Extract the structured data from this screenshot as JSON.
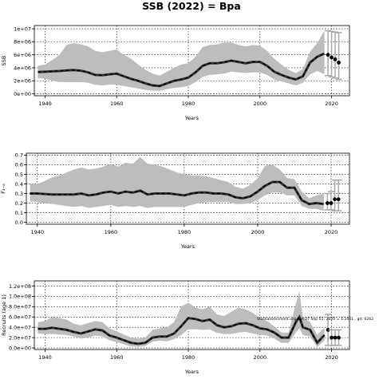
{
  "title": "SSB (2022) = Bpa",
  "chart_data": [
    {
      "type": "line",
      "ylabel": "SSB",
      "xlabel": "Years",
      "xlim": [
        1937,
        2025
      ],
      "ylim": [
        -300000,
        10500000
      ],
      "xticks": [
        1940,
        1960,
        1980,
        2000,
        2020
      ],
      "yticks": [
        {
          "v": 0,
          "label": "0e+00"
        },
        {
          "v": 2000000,
          "label": "2e+06"
        },
        {
          "v": 4000000,
          "label": "4e+06"
        },
        {
          "v": 6000000,
          "label": "6e+06"
        },
        {
          "v": 8000000,
          "label": "8e+06"
        },
        {
          "v": 10000000,
          "label": "1e+07"
        }
      ],
      "grid": true,
      "series": [
        {
          "x": [
            1938,
            1940,
            1942,
            1944,
            1946,
            1948,
            1950,
            1952,
            1954,
            1956,
            1958,
            1960,
            1962,
            1964,
            1966,
            1968,
            1970,
            1972,
            1974,
            1976,
            1978,
            1980,
            1982,
            1984,
            1986,
            1988,
            1990,
            1992,
            1994,
            1996,
            1998,
            2000,
            2002,
            2004,
            2006,
            2008,
            2010,
            2012,
            2014,
            2016,
            2018
          ],
          "y": [
            3350000,
            3400000,
            3450000,
            3500000,
            3600000,
            3650000,
            3550000,
            3300000,
            2900000,
            2850000,
            3000000,
            3100000,
            2700000,
            2300000,
            2000000,
            1600000,
            1300000,
            1200000,
            1600000,
            2000000,
            2200000,
            2500000,
            3300000,
            4300000,
            4700000,
            4700000,
            4850000,
            5100000,
            4900000,
            4700000,
            4900000,
            4900000,
            4300000,
            3400000,
            2900000,
            2500000,
            2200000,
            2700000,
            4800000,
            5700000,
            6200000
          ],
          "upper": [
            4300000,
            4500000,
            5200000,
            6000000,
            7500000,
            7800000,
            7600000,
            7300000,
            6600000,
            6400000,
            6600000,
            6800000,
            6000000,
            5400000,
            4500000,
            3700000,
            3100000,
            2800000,
            3400000,
            4000000,
            4500000,
            4700000,
            5700000,
            7200000,
            7500000,
            7600000,
            7900000,
            7900000,
            7500000,
            7300000,
            7500000,
            7400000,
            6600000,
            5400000,
            4500000,
            3700000,
            3200000,
            3800000,
            6500000,
            7800000,
            9700000
          ],
          "lower": [
            2400000,
            2300000,
            2000000,
            1800000,
            1800000,
            1800000,
            1800000,
            1700000,
            1400000,
            1300000,
            1400000,
            1400000,
            1200000,
            1000000,
            800000,
            600000,
            500000,
            450000,
            700000,
            900000,
            1000000,
            1200000,
            1800000,
            2600000,
            2900000,
            3000000,
            3100000,
            3400000,
            3300000,
            3200000,
            3300000,
            3300000,
            2900000,
            2200000,
            1900000,
            1600000,
            1300000,
            1700000,
            3000000,
            3500000,
            3000000
          ]
        }
      ],
      "recent": {
        "x": [
          2019,
          2020,
          2021,
          2022
        ],
        "y": [
          6000000,
          5600000,
          5300000,
          4800000
        ],
        "lower": [
          2800000,
          2600000,
          2400000,
          2200000
        ],
        "upper": [
          9700000,
          9600000,
          9500000,
          9400000
        ]
      }
    },
    {
      "type": "line",
      "ylabel": "F₄₋₈",
      "xlabel": "Years",
      "xlim": [
        1937,
        2025
      ],
      "ylim": [
        -0.02,
        0.72
      ],
      "xticks": [
        1940,
        1960,
        1980,
        2000,
        2020
      ],
      "yticks": [
        {
          "v": 0,
          "label": "0.0"
        },
        {
          "v": 0.1,
          "label": "0.1"
        },
        {
          "v": 0.2,
          "label": "0.2"
        },
        {
          "v": 0.3,
          "label": "0.3"
        },
        {
          "v": 0.4,
          "label": "0.4"
        },
        {
          "v": 0.5,
          "label": "0.5"
        },
        {
          "v": 0.6,
          "label": "0.6"
        },
        {
          "v": 0.7,
          "label": "0.7"
        }
      ],
      "grid": true,
      "series": [
        {
          "x": [
            1938,
            1940,
            1942,
            1944,
            1946,
            1948,
            1950,
            1952,
            1954,
            1956,
            1958,
            1960,
            1962,
            1964,
            1966,
            1968,
            1970,
            1972,
            1974,
            1976,
            1978,
            1980,
            1982,
            1984,
            1986,
            1988,
            1990,
            1992,
            1994,
            1996,
            1998,
            2000,
            2002,
            2004,
            2006,
            2008,
            2010,
            2012,
            2014,
            2016,
            2018
          ],
          "y": [
            0.3,
            0.3,
            0.295,
            0.29,
            0.29,
            0.29,
            0.29,
            0.3,
            0.28,
            0.29,
            0.31,
            0.32,
            0.3,
            0.32,
            0.31,
            0.33,
            0.29,
            0.3,
            0.3,
            0.3,
            0.29,
            0.28,
            0.3,
            0.31,
            0.31,
            0.3,
            0.3,
            0.29,
            0.26,
            0.25,
            0.27,
            0.32,
            0.38,
            0.42,
            0.42,
            0.36,
            0.36,
            0.23,
            0.19,
            0.2,
            0.19
          ],
          "upper": [
            0.4,
            0.4,
            0.43,
            0.47,
            0.49,
            0.52,
            0.55,
            0.57,
            0.55,
            0.56,
            0.58,
            0.61,
            0.58,
            0.62,
            0.61,
            0.68,
            0.61,
            0.6,
            0.58,
            0.55,
            0.52,
            0.5,
            0.49,
            0.49,
            0.48,
            0.46,
            0.44,
            0.42,
            0.37,
            0.35,
            0.39,
            0.46,
            0.59,
            0.6,
            0.55,
            0.46,
            0.45,
            0.32,
            0.25,
            0.28,
            0.3
          ],
          "lower": [
            0.22,
            0.21,
            0.2,
            0.19,
            0.18,
            0.17,
            0.16,
            0.17,
            0.15,
            0.16,
            0.17,
            0.18,
            0.16,
            0.17,
            0.16,
            0.17,
            0.15,
            0.16,
            0.16,
            0.16,
            0.16,
            0.16,
            0.18,
            0.2,
            0.21,
            0.21,
            0.21,
            0.21,
            0.19,
            0.19,
            0.2,
            0.23,
            0.28,
            0.31,
            0.31,
            0.28,
            0.28,
            0.17,
            0.14,
            0.14,
            0.12
          ]
        }
      ],
      "recent": {
        "x": [
          2019,
          2020,
          2021,
          2022
        ],
        "y": [
          0.2,
          0.2,
          0.24,
          0.24
        ],
        "lower": [
          0.13,
          0.13,
          0.12,
          0.12
        ],
        "upper": [
          0.3,
          0.32,
          0.44,
          0.44
        ]
      }
    },
    {
      "type": "line",
      "ylabel": "Recruits (age 1)",
      "xlabel": "Years",
      "xlim": [
        1937,
        2025
      ],
      "ylim": [
        -3000000,
        130000000
      ],
      "xticks": [
        1940,
        1960,
        1980,
        2000,
        2020
      ],
      "yticks": [
        {
          "v": 0,
          "label": "0.0e+00"
        },
        {
          "v": 20000000,
          "label": "2.0e+07"
        },
        {
          "v": 40000000,
          "label": "4.0e+07"
        },
        {
          "v": 60000000,
          "label": "6.0e+07"
        },
        {
          "v": 80000000,
          "label": "8.0e+07"
        },
        {
          "v": 100000000,
          "label": "1.0e+08"
        },
        {
          "v": 120000000,
          "label": "1.2e+08"
        }
      ],
      "grid": true,
      "annotation": "Stockassessment.org, set 27 Sep 01: 2020 = 1.2461 , git: 6262",
      "series": [
        {
          "x": [
            1938,
            1940,
            1942,
            1944,
            1946,
            1948,
            1950,
            1952,
            1954,
            1956,
            1958,
            1960,
            1962,
            1964,
            1966,
            1968,
            1970,
            1972,
            1974,
            1976,
            1978,
            1980,
            1982,
            1984,
            1986,
            1988,
            1990,
            1992,
            1994,
            1996,
            1998,
            2000,
            2002,
            2004,
            2006,
            2008,
            2010,
            2011,
            2012,
            2014,
            2016,
            2018
          ],
          "y": [
            37000000,
            37000000,
            39000000,
            37000000,
            35000000,
            31000000,
            28000000,
            32000000,
            36000000,
            34000000,
            24000000,
            20000000,
            15000000,
            10000000,
            8000000,
            10000000,
            20000000,
            22000000,
            22000000,
            28000000,
            42000000,
            58000000,
            56000000,
            52000000,
            55000000,
            44000000,
            40000000,
            42000000,
            47000000,
            48000000,
            44000000,
            38000000,
            36000000,
            30000000,
            20000000,
            20000000,
            50000000,
            60000000,
            40000000,
            35000000,
            10000000,
            25000000
          ],
          "upper": [
            50000000,
            52000000,
            60000000,
            58000000,
            55000000,
            47000000,
            44000000,
            48000000,
            52000000,
            50000000,
            38000000,
            32000000,
            26000000,
            20000000,
            18000000,
            20000000,
            35000000,
            38000000,
            40000000,
            50000000,
            80000000,
            88000000,
            78000000,
            75000000,
            80000000,
            65000000,
            62000000,
            70000000,
            78000000,
            75000000,
            68000000,
            58000000,
            52000000,
            42000000,
            30000000,
            30000000,
            85000000,
            110000000,
            60000000,
            50000000,
            25000000,
            40000000
          ],
          "lower": [
            28000000,
            27000000,
            27000000,
            26000000,
            25000000,
            22000000,
            18000000,
            20000000,
            24000000,
            22000000,
            15000000,
            11000000,
            7000000,
            3000000,
            2000000,
            4000000,
            12000000,
            14000000,
            13000000,
            17000000,
            25000000,
            36000000,
            36000000,
            35000000,
            36000000,
            29000000,
            27000000,
            27000000,
            30000000,
            31000000,
            28000000,
            25000000,
            24000000,
            18000000,
            10000000,
            10000000,
            30000000,
            38000000,
            25000000,
            22000000,
            2000000,
            14000000
          ]
        }
      ],
      "recent": {
        "x": [
          2019,
          2020,
          2021,
          2022
        ],
        "y": [
          35000000,
          20000000,
          20000000,
          20000000
        ],
        "lower": [
          5000000,
          5000000,
          5000000,
          5000000
        ],
        "upper": [
          65000000,
          35000000,
          35000000,
          35000000
        ]
      }
    }
  ]
}
